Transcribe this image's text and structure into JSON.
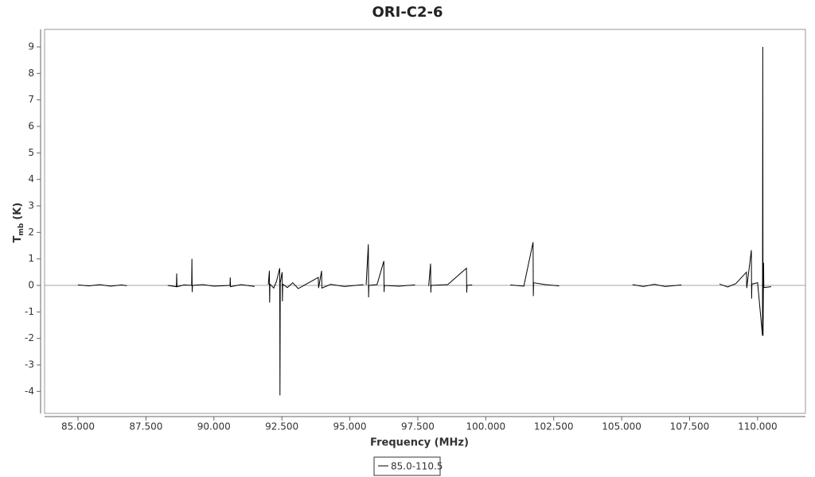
{
  "chart_data": {
    "type": "line",
    "title": "ORI-C2-6",
    "xlabel": "Frequency (MHz)",
    "ylabel_parts": [
      "T",
      "mb",
      "(K)"
    ],
    "xlim": [
      83.77,
      111.76
    ],
    "ylim": [
      -4.83,
      9.66
    ],
    "xticks": [
      {
        "value": 85,
        "label": "85.000"
      },
      {
        "value": 87.5,
        "label": "87.500"
      },
      {
        "value": 90,
        "label": "90.000"
      },
      {
        "value": 92.5,
        "label": "92.500"
      },
      {
        "value": 95,
        "label": "95.000"
      },
      {
        "value": 97.5,
        "label": "97.500"
      },
      {
        "value": 100,
        "label": "100.000"
      },
      {
        "value": 102.5,
        "label": "102.500"
      },
      {
        "value": 105,
        "label": "105.000"
      },
      {
        "value": 107.5,
        "label": "107.500"
      },
      {
        "value": 110,
        "label": "110.000"
      }
    ],
    "yticks": [
      -4,
      -3,
      -2,
      -1,
      0,
      1,
      2,
      3,
      4,
      5,
      6,
      7,
      8,
      9
    ],
    "x": [
      85.0,
      85.4,
      85.8,
      86.2,
      86.6,
      86.8,
      87.5,
      88.3,
      88.62,
      88.63,
      88.64,
      88.9,
      89.18,
      89.19,
      89.2,
      89.21,
      89.6,
      90.0,
      90.59,
      90.6,
      90.61,
      91.0,
      91.5,
      91.75,
      92.0,
      92.04,
      92.05,
      92.06,
      92.2,
      92.3,
      92.42,
      92.43,
      92.44,
      92.51,
      92.52,
      92.53,
      92.7,
      92.9,
      93.1,
      93.4,
      93.84,
      93.85,
      93.96,
      93.97,
      94.3,
      94.8,
      95.5,
      95.55,
      95.6,
      95.68,
      95.69,
      95.7,
      96.0,
      96.25,
      96.26,
      96.27,
      96.8,
      97.4,
      97.6,
      97.9,
      97.97,
      97.98,
      97.99,
      98.6,
      99.29,
      99.3,
      99.31,
      99.5,
      100.2,
      100.9,
      101.4,
      101.74,
      101.75,
      101.76,
      102.2,
      102.7,
      104.0,
      105.4,
      105.8,
      106.2,
      106.6,
      107.2,
      108.0,
      108.6,
      108.9,
      109.2,
      109.59,
      109.6,
      109.77,
      109.78,
      109.79,
      110.0,
      110.18,
      110.19,
      110.2,
      110.22,
      110.23,
      110.5
    ],
    "series": [
      {
        "name": "85.0-110.5",
        "color": "#000000",
        "values": [
          0.02,
          -0.02,
          0.03,
          -0.03,
          0.02,
          -0.01,
          null,
          0.0,
          -0.05,
          0.45,
          -0.05,
          0.02,
          0.0,
          1.0,
          -0.25,
          0.0,
          0.03,
          -0.03,
          0.0,
          0.3,
          -0.05,
          0.03,
          -0.04,
          null,
          0.03,
          0.55,
          -0.65,
          0.05,
          -0.1,
          0.15,
          0.65,
          -4.15,
          0.1,
          0.5,
          -0.6,
          0.05,
          -0.08,
          0.1,
          -0.12,
          0.05,
          0.3,
          -0.1,
          0.55,
          -0.1,
          0.04,
          -0.04,
          0.03,
          null,
          0.02,
          1.55,
          -0.45,
          0.0,
          0.03,
          0.92,
          -0.25,
          0.0,
          -0.03,
          0.02,
          null,
          -0.02,
          0.82,
          -0.27,
          0.0,
          0.03,
          0.65,
          -0.27,
          0.0,
          0.02,
          null,
          0.02,
          -0.03,
          1.63,
          -0.4,
          0.1,
          0.03,
          -0.02,
          null,
          0.03,
          -0.04,
          0.04,
          -0.04,
          0.02,
          null,
          0.05,
          -0.06,
          0.07,
          0.5,
          -0.1,
          1.33,
          -0.5,
          0.05,
          0.1,
          -1.9,
          9.0,
          -1.9,
          0.85,
          -0.08,
          -0.05
        ]
      }
    ]
  }
}
